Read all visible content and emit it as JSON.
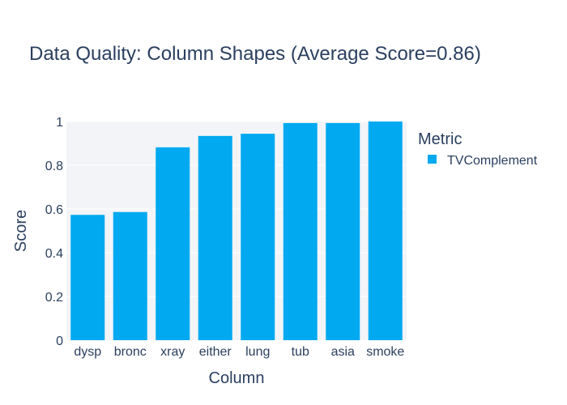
{
  "chart_data": {
    "type": "bar",
    "title": "Data Quality: Column Shapes (Average Score=0.86)",
    "xlabel": "Column",
    "ylabel": "Score",
    "categories": [
      "dysp",
      "bronc",
      "xray",
      "either",
      "lung",
      "tub",
      "asia",
      "smoke"
    ],
    "series": [
      {
        "name": "TVComplement",
        "values": [
          0.573,
          0.586,
          0.882,
          0.934,
          0.944,
          0.993,
          0.993,
          1.0
        ]
      }
    ],
    "ylim": [
      0,
      1
    ],
    "yticks": [
      0,
      0.2,
      0.4,
      0.6,
      0.8,
      1
    ],
    "ytick_labels": [
      "0",
      "0.2",
      "0.4",
      "0.6",
      "0.8",
      "1"
    ],
    "legend": {
      "title": "Metric",
      "placement": "top-right"
    },
    "grid": true,
    "colors": {
      "bar": "#00a9f0",
      "plot_background": "#f3f4f8",
      "grid": "#ffffff",
      "text": "#2a3f5f"
    }
  }
}
